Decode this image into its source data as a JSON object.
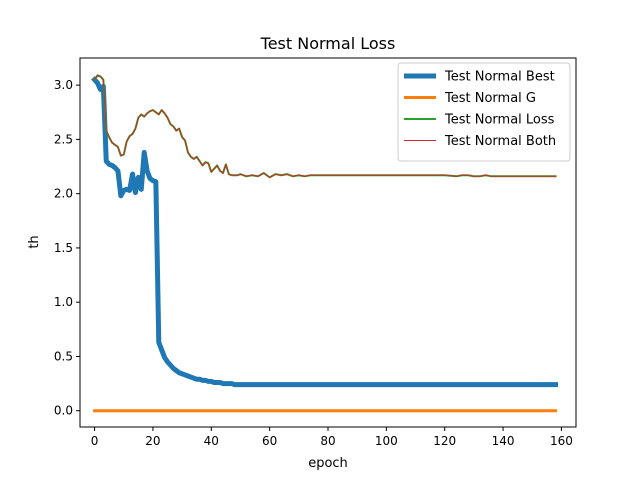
{
  "chart_data": {
    "type": "line",
    "title": "Test Normal Loss",
    "xlabel": "epoch",
    "ylabel": "th",
    "xlim": [
      -5,
      165
    ],
    "ylim": [
      -0.15,
      3.25
    ],
    "xticks": [
      0,
      20,
      40,
      60,
      80,
      100,
      120,
      140,
      160
    ],
    "yticks": [
      0.0,
      0.5,
      1.0,
      1.5,
      2.0,
      2.5,
      3.0
    ],
    "xtick_labels": [
      "0",
      "20",
      "40",
      "60",
      "80",
      "100",
      "120",
      "140",
      "160"
    ],
    "ytick_labels": [
      "0.0",
      "0.5",
      "1.0",
      "1.5",
      "2.0",
      "2.5",
      "3.0"
    ],
    "grid": false,
    "legend_position": "top-right",
    "series": [
      {
        "name": "Test Normal Best",
        "color": "#1f77b4",
        "x": [
          0,
          1,
          2,
          3,
          4,
          5,
          6,
          7,
          8,
          9,
          10,
          11,
          12,
          13,
          14,
          15,
          16,
          17,
          18,
          19,
          20,
          21,
          22,
          23,
          24,
          25,
          26,
          27,
          28,
          29,
          30,
          31,
          32,
          33,
          34,
          35,
          36,
          37,
          38,
          39,
          40,
          41,
          42,
          43,
          44,
          45,
          46,
          47,
          48,
          49,
          50,
          55,
          60,
          70,
          80,
          90,
          100,
          110,
          120,
          130,
          140,
          150,
          158
        ],
        "y": [
          3.05,
          3.02,
          2.96,
          2.99,
          2.3,
          2.27,
          2.26,
          2.24,
          2.21,
          1.98,
          2.03,
          2.04,
          2.03,
          2.18,
          2.01,
          2.15,
          2.04,
          2.38,
          2.21,
          2.14,
          2.12,
          2.11,
          0.63,
          0.56,
          0.49,
          0.45,
          0.42,
          0.39,
          0.37,
          0.35,
          0.34,
          0.33,
          0.32,
          0.31,
          0.3,
          0.29,
          0.29,
          0.28,
          0.28,
          0.27,
          0.27,
          0.26,
          0.26,
          0.26,
          0.25,
          0.25,
          0.25,
          0.25,
          0.24,
          0.24,
          0.24,
          0.24,
          0.24,
          0.24,
          0.24,
          0.24,
          0.24,
          0.24,
          0.24,
          0.24,
          0.24,
          0.24,
          0.24
        ]
      },
      {
        "name": "Test Normal G",
        "color": "#ff7f0e",
        "x": [
          0,
          158
        ],
        "y": [
          0.0,
          0.0
        ]
      },
      {
        "name": "Test Normal Loss",
        "color": "#2ca02c",
        "x": [
          0,
          1,
          2,
          3,
          4,
          5,
          6,
          7,
          8,
          9,
          10,
          11,
          12,
          13,
          14,
          15,
          16,
          17,
          18,
          19,
          20,
          21,
          22,
          23,
          24,
          25,
          26,
          27,
          28,
          29,
          30,
          31,
          32,
          33,
          34,
          35,
          36,
          37,
          38,
          39,
          40,
          41,
          42,
          43,
          44,
          45,
          46,
          47,
          48,
          49,
          50,
          52,
          54,
          56,
          58,
          60,
          62,
          64,
          66,
          68,
          70,
          72,
          74,
          76,
          78,
          80,
          90,
          100,
          110,
          120,
          124,
          126,
          128,
          130,
          132,
          134,
          136,
          138,
          140,
          145,
          150,
          158
        ],
        "y": [
          3.05,
          3.09,
          3.08,
          3.05,
          2.58,
          2.52,
          2.47,
          2.45,
          2.43,
          2.35,
          2.36,
          2.48,
          2.53,
          2.55,
          2.6,
          2.7,
          2.73,
          2.71,
          2.74,
          2.76,
          2.77,
          2.75,
          2.73,
          2.77,
          2.74,
          2.7,
          2.64,
          2.62,
          2.58,
          2.6,
          2.52,
          2.49,
          2.38,
          2.34,
          2.32,
          2.34,
          2.3,
          2.26,
          2.29,
          2.28,
          2.2,
          2.23,
          2.26,
          2.21,
          2.19,
          2.27,
          2.18,
          2.17,
          2.17,
          2.17,
          2.18,
          2.16,
          2.17,
          2.16,
          2.19,
          2.15,
          2.18,
          2.17,
          2.18,
          2.16,
          2.17,
          2.16,
          2.17,
          2.17,
          2.17,
          2.17,
          2.17,
          2.17,
          2.17,
          2.17,
          2.16,
          2.17,
          2.17,
          2.16,
          2.16,
          2.17,
          2.16,
          2.16,
          2.16,
          2.16,
          2.16,
          2.16
        ]
      },
      {
        "name": "Test Normal Both",
        "color": "#d62728",
        "x": [
          0,
          1,
          2,
          3,
          4,
          5,
          6,
          7,
          8,
          9,
          10,
          11,
          12,
          13,
          14,
          15,
          16,
          17,
          18,
          19,
          20,
          21,
          22,
          23,
          24,
          25,
          26,
          27,
          28,
          29,
          30,
          31,
          32,
          33,
          34,
          35,
          36,
          37,
          38,
          39,
          40,
          41,
          42,
          43,
          44,
          45,
          46,
          47,
          48,
          49,
          50,
          52,
          54,
          56,
          58,
          60,
          62,
          64,
          66,
          68,
          70,
          72,
          74,
          76,
          78,
          80,
          90,
          100,
          110,
          120,
          124,
          126,
          128,
          130,
          132,
          134,
          136,
          138,
          140,
          145,
          150,
          158
        ],
        "y": [
          3.05,
          3.09,
          3.08,
          3.05,
          2.58,
          2.52,
          2.47,
          2.45,
          2.43,
          2.35,
          2.36,
          2.48,
          2.53,
          2.55,
          2.6,
          2.7,
          2.73,
          2.71,
          2.74,
          2.76,
          2.77,
          2.75,
          2.73,
          2.77,
          2.74,
          2.7,
          2.64,
          2.62,
          2.58,
          2.6,
          2.52,
          2.49,
          2.38,
          2.34,
          2.32,
          2.34,
          2.3,
          2.26,
          2.29,
          2.28,
          2.2,
          2.23,
          2.26,
          2.21,
          2.19,
          2.27,
          2.18,
          2.17,
          2.17,
          2.17,
          2.18,
          2.16,
          2.17,
          2.16,
          2.19,
          2.15,
          2.18,
          2.17,
          2.18,
          2.16,
          2.17,
          2.16,
          2.17,
          2.17,
          2.17,
          2.17,
          2.17,
          2.17,
          2.17,
          2.17,
          2.16,
          2.17,
          2.17,
          2.16,
          2.16,
          2.17,
          2.16,
          2.16,
          2.16,
          2.16,
          2.16,
          2.16
        ]
      }
    ]
  }
}
